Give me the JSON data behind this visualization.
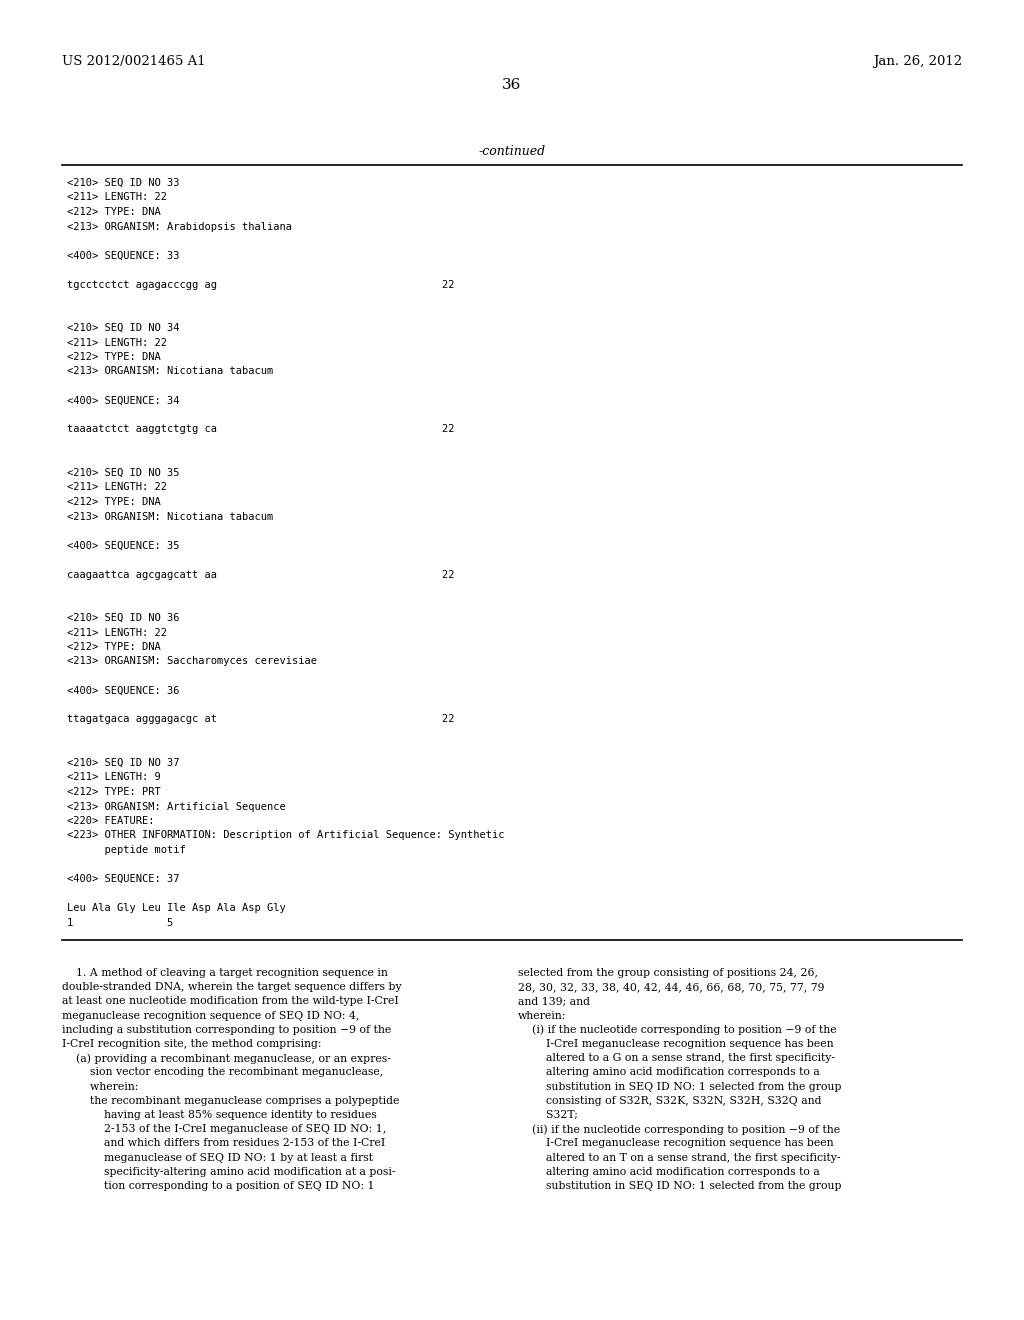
{
  "background_color": "#ffffff",
  "header_left": "US 2012/0021465 A1",
  "header_right": "Jan. 26, 2012",
  "page_number": "36",
  "continued_label": "-continued",
  "monospace_sections": [
    "<210> SEQ ID NO 33",
    "<211> LENGTH: 22",
    "<212> TYPE: DNA",
    "<213> ORGANISM: Arabidopsis thaliana",
    "",
    "<400> SEQUENCE: 33",
    "",
    "tgcctcctct agagacccgg ag                                    22",
    "",
    "",
    "<210> SEQ ID NO 34",
    "<211> LENGTH: 22",
    "<212> TYPE: DNA",
    "<213> ORGANISM: Nicotiana tabacum",
    "",
    "<400> SEQUENCE: 34",
    "",
    "taaaatctct aaggtctgtg ca                                    22",
    "",
    "",
    "<210> SEQ ID NO 35",
    "<211> LENGTH: 22",
    "<212> TYPE: DNA",
    "<213> ORGANISM: Nicotiana tabacum",
    "",
    "<400> SEQUENCE: 35",
    "",
    "caagaattca agcgagcatt aa                                    22",
    "",
    "",
    "<210> SEQ ID NO 36",
    "<211> LENGTH: 22",
    "<212> TYPE: DNA",
    "<213> ORGANISM: Saccharomyces cerevisiae",
    "",
    "<400> SEQUENCE: 36",
    "",
    "ttagatgaca agggagacgc at                                    22",
    "",
    "",
    "<210> SEQ ID NO 37",
    "<211> LENGTH: 9",
    "<212> TYPE: PRT",
    "<213> ORGANISM: Artificial Sequence",
    "<220> FEATURE:",
    "<223> OTHER INFORMATION: Description of Artificial Sequence: Synthetic",
    "      peptide motif",
    "",
    "<400> SEQUENCE: 37",
    "",
    "Leu Ala Gly Leu Ile Asp Ala Asp Gly",
    "1               5"
  ],
  "body_left_col": [
    "    1. A method of cleaving a target recognition sequence in",
    "double-stranded DNA, wherein the target sequence differs by",
    "at least one nucleotide modification from the wild-type I-CreI",
    "meganuclease recognition sequence of SEQ ID NO: 4,",
    "including a substitution corresponding to position −9 of the",
    "I-CreI recognition site, the method comprising:",
    "    (a) providing a recombinant meganuclease, or an expres-",
    "        sion vector encoding the recombinant meganuclease,",
    "        wherein:",
    "        the recombinant meganuclease comprises a polypeptide",
    "            having at least 85% sequence identity to residues",
    "            2-153 of the I-CreI meganuclease of SEQ ID NO: 1,",
    "            and which differs from residues 2-153 of the I-CreI",
    "            meganuclease of SEQ ID NO: 1 by at least a first",
    "            specificity-altering amino acid modification at a posi-",
    "            tion corresponding to a position of SEQ ID NO: 1"
  ],
  "body_right_col": [
    "selected from the group consisting of positions 24, 26,",
    "28, 30, 32, 33, 38, 40, 42, 44, 46, 66, 68, 70, 75, 77, 79",
    "and 139; and",
    "wherein:",
    "    (i) if the nucleotide corresponding to position −9 of the",
    "        I-CreI meganuclease recognition sequence has been",
    "        altered to a G on a sense strand, the first specificity-",
    "        altering amino acid modification corresponds to a",
    "        substitution in SEQ ID NO: 1 selected from the group",
    "        consisting of S32R, S32K, S32N, S32H, S32Q and",
    "        S32T;",
    "    (ii) if the nucleotide corresponding to position −9 of the",
    "        I-CreI meganuclease recognition sequence has been",
    "        altered to an T on a sense strand, the first specificity-",
    "        altering amino acid modification corresponds to a",
    "        substitution in SEQ ID NO: 1 selected from the group"
  ]
}
